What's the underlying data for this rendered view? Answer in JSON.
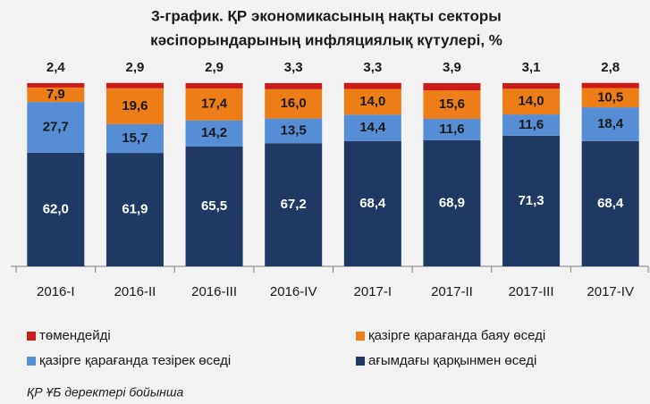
{
  "chart_data": {
    "type": "stacked-bar",
    "title": [
      "3-график. ҚР экономикасының нақты секторы",
      "кәсіпорындарының инфляциялық күтулері,  %"
    ],
    "categories": [
      "2016-I",
      "2016-II",
      "2016-III",
      "2016-IV",
      "2017-I",
      "2017-II",
      "2017-III",
      "2017-IV"
    ],
    "series": [
      {
        "name": "ағымдағы қарқынмен өседі",
        "color": "#1f3864",
        "values": [
          62.0,
          61.9,
          65.5,
          67.2,
          68.4,
          68.9,
          71.3,
          68.4
        ],
        "value_labels": [
          "62,0",
          "61,9",
          "65,5",
          "67,2",
          "68,4",
          "68,9",
          "71,3",
          "68,4"
        ]
      },
      {
        "name": "қазірге қарағанда тезірек өседі",
        "color": "#558ed5",
        "values": [
          27.7,
          15.7,
          14.2,
          13.5,
          14.4,
          11.6,
          11.6,
          18.4
        ],
        "value_labels": [
          "27,7",
          "15,7",
          "14,2",
          "13,5",
          "14,4",
          "11,6",
          "11,6",
          "18,4"
        ]
      },
      {
        "name": "қазірге қарағанда баяу өседі",
        "color": "#ed7d17",
        "values": [
          7.9,
          19.6,
          17.4,
          16.0,
          14.0,
          15.6,
          14.0,
          10.5
        ],
        "value_labels": [
          "7,9",
          "19,6",
          "17,4",
          "16,0",
          "14,0",
          "15,6",
          "14,0",
          "10,5"
        ]
      },
      {
        "name": "төмендейді",
        "color": "#cc1a1a",
        "values": [
          2.4,
          2.9,
          2.9,
          3.3,
          3.3,
          3.9,
          3.1,
          2.8
        ],
        "value_labels": [
          "2,4",
          "2,9",
          "2,9",
          "3,3",
          "3,3",
          "3,9",
          "3,1",
          "2,8"
        ]
      }
    ],
    "ylim": [
      0,
      100
    ],
    "source": "ҚР ҰБ деректері бойынша"
  }
}
